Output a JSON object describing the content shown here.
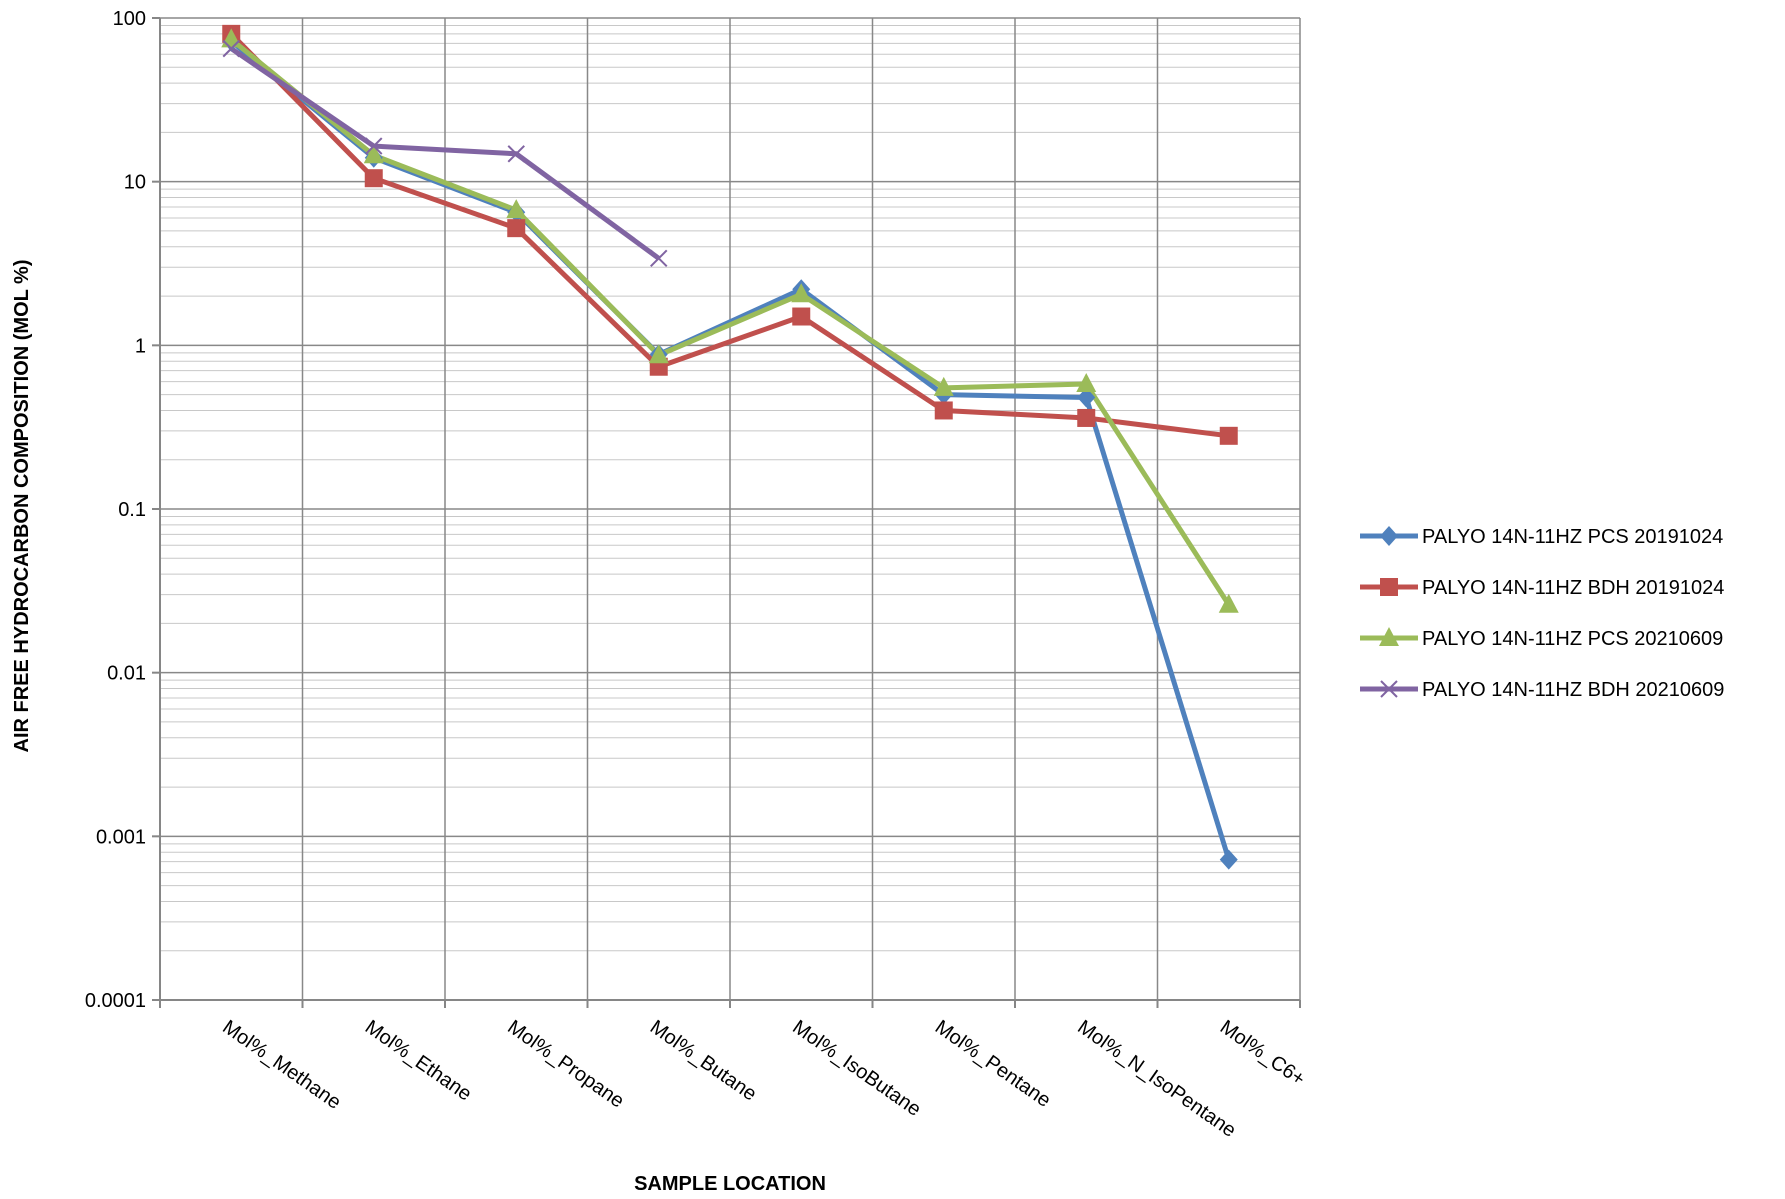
{
  "chart_data": {
    "type": "line",
    "title": "",
    "xlabel": "SAMPLE LOCATION",
    "ylabel": "AIR FREE HYDROCARBON COMPOSITION (MOL %)",
    "yscale": "log",
    "ylim": [
      0.0001,
      100
    ],
    "y_ticks": [
      "100",
      "10",
      "1",
      "0.1",
      "0.01",
      "0.001",
      "0.0001"
    ],
    "grid": true,
    "legend_position": "right",
    "categories": [
      "Mol%_Methane",
      "Mol%_Ethane",
      "Mol%_Propane",
      "Mol%_Butane",
      "Mol%_IsoButane",
      "Mol%_Pentane",
      "Mol%_N_IsoPentane",
      "Mol%_C6+"
    ],
    "series": [
      {
        "name": "PALYO 14N-11HZ PCS 20191024",
        "color": "#4f81bd",
        "marker": "diamond",
        "values": [
          72,
          14,
          6.5,
          0.88,
          2.2,
          0.5,
          0.48,
          0.00072
        ]
      },
      {
        "name": "PALYO 14N-11HZ BDH 20191024",
        "color": "#c0504d",
        "marker": "square",
        "values": [
          80,
          10.5,
          5.2,
          0.74,
          1.5,
          0.4,
          0.36,
          0.28
        ]
      },
      {
        "name": "PALYO 14N-11HZ PCS 20210609",
        "color": "#9bbb59",
        "marker": "triangle",
        "values": [
          74,
          14.5,
          6.7,
          0.87,
          2.05,
          0.55,
          0.58,
          0.026
        ]
      },
      {
        "name": "PALYO 14N-11HZ BDH 20210609",
        "color": "#8064a2",
        "marker": "x",
        "values": [
          65,
          16.5,
          14.8,
          3.4,
          null,
          null,
          null,
          null
        ]
      }
    ]
  }
}
